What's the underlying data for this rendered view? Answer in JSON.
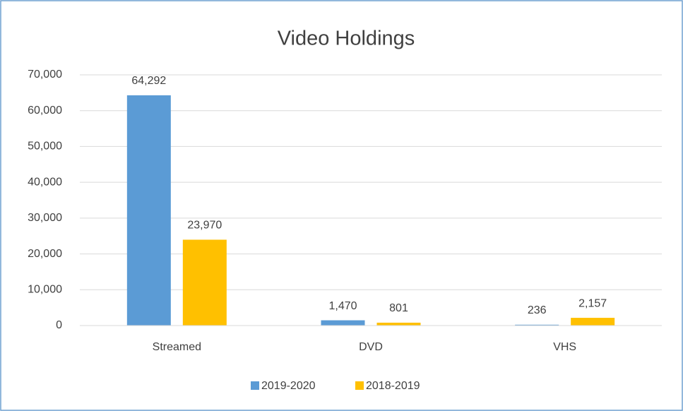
{
  "chart_data": {
    "type": "bar",
    "title": "Video Holdings",
    "categories": [
      "Streamed",
      "DVD",
      "VHS"
    ],
    "series": [
      {
        "name": "2019-2020",
        "color": "#5b9bd5",
        "values": [
          64292,
          1470,
          236
        ],
        "value_labels": [
          "64,292",
          "1,470",
          "236"
        ]
      },
      {
        "name": "2018-2019",
        "color": "#ffc000",
        "values": [
          23970,
          801,
          2157
        ],
        "value_labels": [
          "23,970",
          "801",
          "2,157"
        ]
      }
    ],
    "ylim": [
      0,
      70000
    ],
    "yticks": [
      0,
      {
        "value": 10000,
        "label": "10,000"
      },
      {
        "value": 20000,
        "label": "20,000"
      },
      {
        "value": 30000,
        "label": "30,000"
      },
      {
        "value": 40000,
        "label": "40,000"
      },
      {
        "value": 50000,
        "label": "50,000"
      },
      {
        "value": 60000,
        "label": "60,000"
      },
      {
        "value": 70000,
        "label": "70,000"
      }
    ],
    "grid": true,
    "legend": "bottom"
  }
}
